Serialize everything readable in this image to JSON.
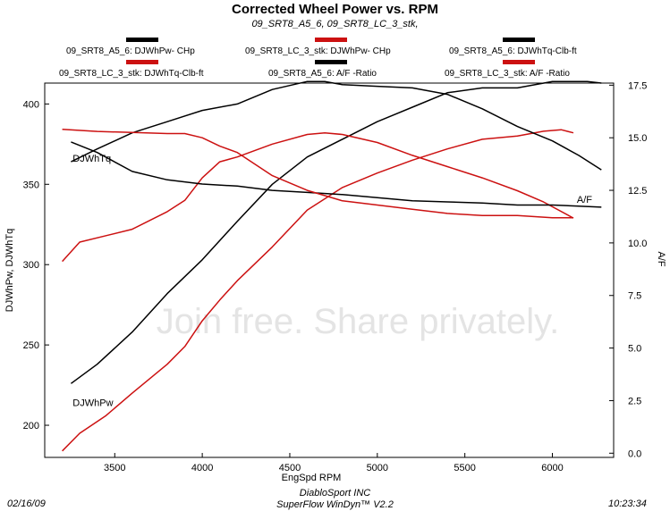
{
  "header": {
    "title": "Corrected Wheel Power vs. RPM",
    "subtitle": "09_SRT8_A5_6, 09_SRT8_LC_3_stk,"
  },
  "legend": [
    {
      "label": "09_SRT8_A5_6: DJWhPw- CHp",
      "color": "#000000"
    },
    {
      "label": "09_SRT8_LC_3_stk: DJWhPw- CHp",
      "color": "#cc1111"
    },
    {
      "label": "09_SRT8_A5_6: DJWhTq-Clb-ft",
      "color": "#000000"
    },
    {
      "label": "09_SRT8_LC_3_stk: DJWhTq-Clb-ft",
      "color": "#cc1111"
    },
    {
      "label": "09_SRT8_A5_6: A/F -Ratio",
      "color": "#000000"
    },
    {
      "label": "09_SRT8_LC_3_stk: A/F -Ratio",
      "color": "#cc1111"
    }
  ],
  "footer": {
    "date": "02/16/09",
    "company": "DiabloSport INC",
    "software": "SuperFlow WinDyn™ V2.2",
    "time": "10:23:34"
  },
  "watermark": "Join free. Share privately.",
  "chart_data": {
    "type": "line",
    "xlabel": "EngSpd  RPM",
    "ylabel": "DJWhPw, DJWhTq",
    "y2label": "A/F",
    "xlim": [
      3100,
      6350
    ],
    "ylim": [
      180,
      413
    ],
    "y2lim": [
      -0.2,
      17.6
    ],
    "xticks": [
      3500,
      4000,
      4500,
      5000,
      5500,
      6000
    ],
    "yticks": [
      200,
      250,
      300,
      350,
      400
    ],
    "y2ticks": [
      0.0,
      2.5,
      5.0,
      7.5,
      10.0,
      12.5,
      15.0,
      17.5
    ],
    "grid": false,
    "annotations": [
      {
        "text": "DJWhTq",
        "x": 3260,
        "y": 364
      },
      {
        "text": "DJWhPw",
        "x": 3260,
        "y": 212
      },
      {
        "text": "A/F",
        "x": 6140,
        "axis": "y2",
        "y": 11.9
      }
    ],
    "series": [
      {
        "name": "09_SRT8_A5_6: DJWhPw- CHp",
        "color": "#000000",
        "axis": "y",
        "x": [
          3250,
          3400,
          3600,
          3800,
          4000,
          4200,
          4400,
          4600,
          4800,
          5000,
          5200,
          5400,
          5600,
          5800,
          6000,
          6200,
          6280
        ],
        "y": [
          226,
          238,
          258,
          282,
          303,
          327,
          350,
          367,
          378,
          389,
          398,
          407,
          410,
          410,
          414,
          414,
          413
        ]
      },
      {
        "name": "09_SRT8_LC_3_stk: DJWhPw- CHp",
        "color": "#cc1111",
        "axis": "y",
        "x": [
          3200,
          3300,
          3450,
          3600,
          3800,
          3900,
          4000,
          4100,
          4200,
          4400,
          4600,
          4800,
          5000,
          5200,
          5400,
          5600,
          5800,
          5950,
          6050,
          6120
        ],
        "y": [
          184,
          195,
          206,
          220,
          238,
          249,
          265,
          278,
          290,
          311,
          334,
          348,
          357,
          365,
          372,
          378,
          380,
          383,
          384,
          382
        ]
      },
      {
        "name": "09_SRT8_A5_6: DJWhTq-Clb-ft",
        "color": "#000000",
        "axis": "y",
        "x": [
          3250,
          3400,
          3600,
          3800,
          4000,
          4200,
          4400,
          4600,
          4700,
          4800,
          5000,
          5200,
          5400,
          5600,
          5800,
          6000,
          6150,
          6280
        ],
        "y": [
          364,
          372,
          382,
          389,
          396,
          400,
          409,
          414,
          414,
          412,
          411,
          410,
          406,
          397,
          386,
          377,
          368,
          359
        ]
      },
      {
        "name": "09_SRT8_LC_3_stk: DJWhTq-Clb-ft",
        "color": "#cc1111",
        "axis": "y",
        "x": [
          3200,
          3300,
          3450,
          3600,
          3800,
          3900,
          4000,
          4100,
          4200,
          4400,
          4600,
          4700,
          4800,
          5000,
          5200,
          5400,
          5600,
          5800,
          5950,
          6120
        ],
        "y": [
          302,
          314,
          318,
          322,
          333,
          340,
          354,
          364,
          367,
          375,
          381,
          382,
          381,
          376,
          368,
          361,
          354,
          346,
          339,
          329
        ]
      },
      {
        "name": "09_SRT8_A5_6: A/F -Ratio",
        "color": "#000000",
        "axis": "y2",
        "x": [
          3250,
          3400,
          3600,
          3800,
          4000,
          4200,
          4400,
          4600,
          4800,
          5000,
          5200,
          5400,
          5600,
          5800,
          6000,
          6150,
          6280
        ],
        "y": [
          14.8,
          14.3,
          13.4,
          13.0,
          12.8,
          12.7,
          12.5,
          12.4,
          12.3,
          12.15,
          12.0,
          11.95,
          11.9,
          11.8,
          11.8,
          11.75,
          11.7
        ]
      },
      {
        "name": "09_SRT8_LC_3_stk: A/F -Ratio",
        "color": "#cc1111",
        "axis": "y2",
        "x": [
          3200,
          3400,
          3600,
          3800,
          3900,
          4000,
          4100,
          4200,
          4400,
          4600,
          4800,
          5000,
          5200,
          5400,
          5600,
          5800,
          6000,
          6120
        ],
        "y": [
          15.4,
          15.3,
          15.25,
          15.2,
          15.2,
          15.0,
          14.6,
          14.3,
          13.2,
          12.5,
          12.0,
          11.8,
          11.6,
          11.4,
          11.3,
          11.3,
          11.2,
          11.2
        ]
      }
    ]
  }
}
